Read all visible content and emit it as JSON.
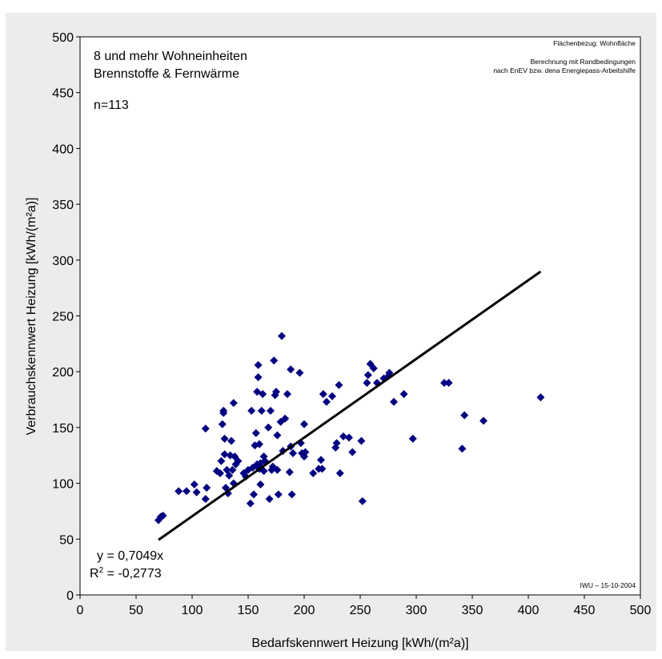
{
  "chart_data": {
    "type": "scatter",
    "xlabel": "Bedarfskennwert Heizung [kWh/(m²a)]",
    "ylabel": "Verbrauchskennwert Heizung [kWh/(m²a)]",
    "xlim": [
      0,
      500
    ],
    "ylim": [
      0,
      500
    ],
    "xticks": [
      "0",
      "50",
      "100",
      "150",
      "200",
      "250",
      "300",
      "350",
      "400",
      "450",
      "500"
    ],
    "yticks": [
      "0",
      "50",
      "100",
      "150",
      "200",
      "250",
      "300",
      "350",
      "400",
      "450",
      "500"
    ],
    "grid": false,
    "marker_color": "#000080",
    "points": [
      [
        70,
        67
      ],
      [
        72,
        70
      ],
      [
        74,
        71
      ],
      [
        88,
        93
      ],
      [
        95,
        93
      ],
      [
        102,
        99
      ],
      [
        104,
        92
      ],
      [
        112,
        149
      ],
      [
        112,
        86
      ],
      [
        113,
        96
      ],
      [
        122,
        111
      ],
      [
        125,
        109
      ],
      [
        126,
        120
      ],
      [
        127,
        153
      ],
      [
        128,
        163
      ],
      [
        128,
        165
      ],
      [
        129,
        140
      ],
      [
        129,
        126
      ],
      [
        130,
        96
      ],
      [
        131,
        112
      ],
      [
        132,
        91
      ],
      [
        133,
        107
      ],
      [
        134,
        125
      ],
      [
        135,
        138
      ],
      [
        136,
        112
      ],
      [
        137,
        100
      ],
      [
        137,
        172
      ],
      [
        138,
        124
      ],
      [
        139,
        117
      ],
      [
        141,
        120
      ],
      [
        146,
        109
      ],
      [
        148,
        106
      ],
      [
        150,
        112
      ],
      [
        152,
        82
      ],
      [
        153,
        165
      ],
      [
        154,
        114
      ],
      [
        155,
        90
      ],
      [
        156,
        134
      ],
      [
        157,
        145
      ],
      [
        158,
        117
      ],
      [
        158,
        182
      ],
      [
        159,
        195
      ],
      [
        159,
        206
      ],
      [
        160,
        113
      ],
      [
        160,
        135
      ],
      [
        161,
        118
      ],
      [
        161,
        99
      ],
      [
        162,
        165
      ],
      [
        163,
        180
      ],
      [
        164,
        124
      ],
      [
        164,
        111
      ],
      [
        165,
        120
      ],
      [
        168,
        150
      ],
      [
        169,
        86
      ],
      [
        170,
        165
      ],
      [
        171,
        112
      ],
      [
        172,
        115
      ],
      [
        173,
        210
      ],
      [
        174,
        179
      ],
      [
        175,
        182
      ],
      [
        176,
        112
      ],
      [
        176,
        143
      ],
      [
        177,
        90
      ],
      [
        179,
        155
      ],
      [
        180,
        232
      ],
      [
        181,
        129
      ],
      [
        183,
        158
      ],
      [
        185,
        180
      ],
      [
        187,
        110
      ],
      [
        188,
        133
      ],
      [
        188,
        202
      ],
      [
        189,
        90
      ],
      [
        190,
        127
      ],
      [
        196,
        199
      ],
      [
        197,
        136
      ],
      [
        198,
        127
      ],
      [
        200,
        124
      ],
      [
        200,
        153
      ],
      [
        201,
        128
      ],
      [
        208,
        109
      ],
      [
        213,
        113
      ],
      [
        215,
        121
      ],
      [
        216,
        113
      ],
      [
        217,
        180
      ],
      [
        220,
        173
      ],
      [
        225,
        178
      ],
      [
        228,
        132
      ],
      [
        229,
        136
      ],
      [
        231,
        188
      ],
      [
        232,
        109
      ],
      [
        235,
        142
      ],
      [
        240,
        141
      ],
      [
        243,
        128
      ],
      [
        251,
        138
      ],
      [
        252,
        84
      ],
      [
        256,
        190
      ],
      [
        257,
        197
      ],
      [
        259,
        207
      ],
      [
        262,
        203
      ],
      [
        265,
        190
      ],
      [
        271,
        194
      ],
      [
        275,
        196
      ],
      [
        276,
        199
      ],
      [
        280,
        173
      ],
      [
        289,
        180
      ],
      [
        297,
        140
      ],
      [
        325,
        190
      ],
      [
        329,
        190
      ],
      [
        341,
        131
      ],
      [
        343,
        161
      ],
      [
        360,
        156
      ],
      [
        411,
        177
      ],
      [
        161,
        118
      ]
    ],
    "trendline": {
      "slope": 0.7049,
      "x_start": 70,
      "x_end": 411
    }
  },
  "annotations": {
    "left_line1": "8 und mehr Wohneinheiten",
    "left_line2": "Brennstoffe & Fernwärme",
    "n": "n=113",
    "ref_area": "Flächenbezug: Wohnfläche",
    "calc_line1": "Berechnung mit Randbedingungen",
    "calc_line2": "nach EnEV bzw. dena Energiepass-Arbeitshilfe",
    "equation": "y = 0,7049x",
    "r2_prefix": "R",
    "r2_exp": "2",
    "r2_value": " = -0,2773",
    "stamp": "IWU – 15-10-2004"
  }
}
